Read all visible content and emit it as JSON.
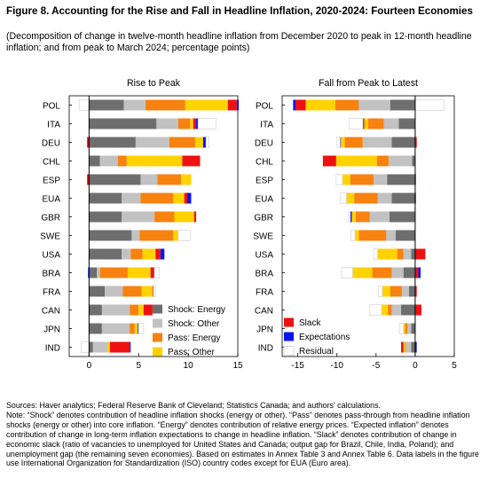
{
  "title": "Figure 8. Accounting for the Rise and Fall in Headline Inflation, 2020-2024: Fourteen Economies",
  "subtitle": "(Decomposition of change in twelve-month headline inflation from December 2020 to peak in 12-month headline inflation; and from peak to March 2024; percentage points)",
  "colors": {
    "shock_energy": "#6e6e6e",
    "shock_other": "#c2c2c2",
    "pass_energy": "#f7820f",
    "pass_other": "#ffd200",
    "slack": "#ee1111",
    "expectations": "#0a14ee",
    "residual": "#ffffff"
  },
  "chart_data": [
    {
      "type": "bar",
      "orientation": "horizontal",
      "stacked": true,
      "title": "Rise to Peak",
      "categories": [
        "POL",
        "ITA",
        "DEU",
        "CHL",
        "ESP",
        "EUA",
        "GBR",
        "SWE",
        "USA",
        "BRA",
        "FRA",
        "CAN",
        "JPN",
        "IND"
      ],
      "xlim": [
        -2,
        15
      ],
      "xticks": [
        0,
        5,
        10,
        15
      ],
      "grid": false,
      "legend_position": "bottom-right",
      "series": [
        {
          "name": "Shock: Energy",
          "values": [
            3.5,
            6.8,
            4.7,
            1.1,
            5.2,
            3.3,
            3.3,
            4.3,
            3.3,
            0.8,
            1.6,
            1.3,
            1.3,
            0.4
          ]
        },
        {
          "name": "Shock: Other",
          "values": [
            2.2,
            2.2,
            3.4,
            1.8,
            1.7,
            1.9,
            3.3,
            0.8,
            0.9,
            0.3,
            1.8,
            2.8,
            2.8,
            1.5
          ]
        },
        {
          "name": "Pass: Energy",
          "values": [
            4.0,
            1.2,
            2.6,
            0.9,
            2.4,
            3.3,
            2.0,
            3.4,
            1.2,
            2.8,
            1.9,
            0.9,
            0.5,
            0
          ]
        },
        {
          "name": "Pass: Other",
          "values": [
            4.3,
            0.3,
            0.8,
            5.6,
            1.0,
            1.1,
            2.0,
            0.5,
            1.3,
            2.3,
            1.1,
            0.5,
            0.3,
            0.2
          ]
        },
        {
          "name": "Slack",
          "values": [
            0.9,
            0.3,
            -0.2,
            1.8,
            -0.2,
            0.3,
            0.2,
            0,
            0.5,
            0.4,
            0.1,
            0.9,
            0,
            2.0
          ]
        },
        {
          "name": "Expectations",
          "values": [
            0.2,
            0.2,
            0.3,
            0,
            0,
            0.4,
            0,
            0,
            0.4,
            -0.1,
            0,
            0,
            0.1,
            0.1
          ]
        },
        {
          "name": "Residual",
          "values": [
            -1.0,
            1.8,
            0.3,
            0,
            0,
            0,
            0,
            1.2,
            0,
            0.5,
            0.2,
            0,
            0.5,
            -0.8
          ]
        }
      ]
    },
    {
      "type": "bar",
      "orientation": "horizontal",
      "stacked": true,
      "title": "Fall from Peak to Latest",
      "categories": [
        "POL",
        "ITA",
        "DEU",
        "CHL",
        "ESP",
        "EUA",
        "GBR",
        "SWE",
        "USA",
        "BRA",
        "FRA",
        "CAN",
        "JPN",
        "IND"
      ],
      "xlim": [
        -17,
        5
      ],
      "xticks": [
        -15,
        -10,
        -5,
        0,
        5
      ],
      "grid": false,
      "legend_position": "bottom-right",
      "series": [
        {
          "name": "Shock: Energy",
          "values": [
            -3.2,
            -2.1,
            -3.0,
            -0.4,
            -3.6,
            -3.0,
            -3.3,
            -2.5,
            -0.5,
            -1.5,
            -0.8,
            -1.8,
            -0.5,
            -0.5
          ]
        },
        {
          "name": "Shock: Other",
          "values": [
            -4.0,
            -1.9,
            -3.7,
            -3.0,
            -1.7,
            -1.8,
            -2.5,
            -1.2,
            -1.0,
            -1.5,
            -0.9,
            -1.2,
            -0.5,
            -0.7
          ]
        },
        {
          "name": "Pass: Energy",
          "values": [
            -3.0,
            -2.0,
            -2.3,
            -1.5,
            -3.0,
            -3.0,
            -1.8,
            -3.5,
            -0.8,
            -2.5,
            -1.5,
            -0.5,
            -0.3,
            -0.1
          ]
        },
        {
          "name": "Pass: Other",
          "values": [
            -3.8,
            -0.5,
            -0.5,
            -5.2,
            -1.0,
            -1.0,
            -0.5,
            -0.5,
            -2.5,
            -2.5,
            -1.0,
            -0.8,
            -0.2,
            -0.2
          ]
        },
        {
          "name": "Slack",
          "values": [
            -1.3,
            -0.1,
            0.2,
            -1.7,
            0.1,
            0.1,
            0,
            0,
            1.3,
            0.4,
            0.2,
            0.8,
            0,
            -0.3
          ]
        },
        {
          "name": "Expectations",
          "values": [
            -0.3,
            -0.1,
            -0.1,
            0,
            0,
            0,
            -0.2,
            0,
            0,
            0.3,
            0,
            0,
            0,
            0.2
          ]
        },
        {
          "name": "Residual",
          "values": [
            3.7,
            -1.7,
            -0.4,
            0,
            -0.8,
            -0.8,
            -0.2,
            -0.5,
            -0.5,
            -1.4,
            -0.5,
            -1.5,
            -0.5,
            0
          ]
        }
      ]
    }
  ],
  "notes": [
    "Sources: Haver analytics; Federal Reserve Bank of Cleveland; Statistics Canada; and authors' calculations.",
    "Note: “Shock” denotes contribution of headline inflation shocks (energy or other). “Pass” denotes pass-through from headline inflation shocks (energy or other) into core inflation. “Energy” denotes contribution of relative energy prices. “Expected inflation” denotes contribution of change in long-term inflation expectations to change in headline inflation. “Slack” denotes contribution of change in economic slack (ratio of vacancies to unemployed for United States and Canada; output gap for Brazil, Chile, India, Poland); and unemployment gap (the remaining seven economies). Based on estimates in Annex Table 3 and Annex Table 6. Data labels in the figure use International Organization for Standardization (ISO) country codes except for EUA (Euro area)."
  ]
}
